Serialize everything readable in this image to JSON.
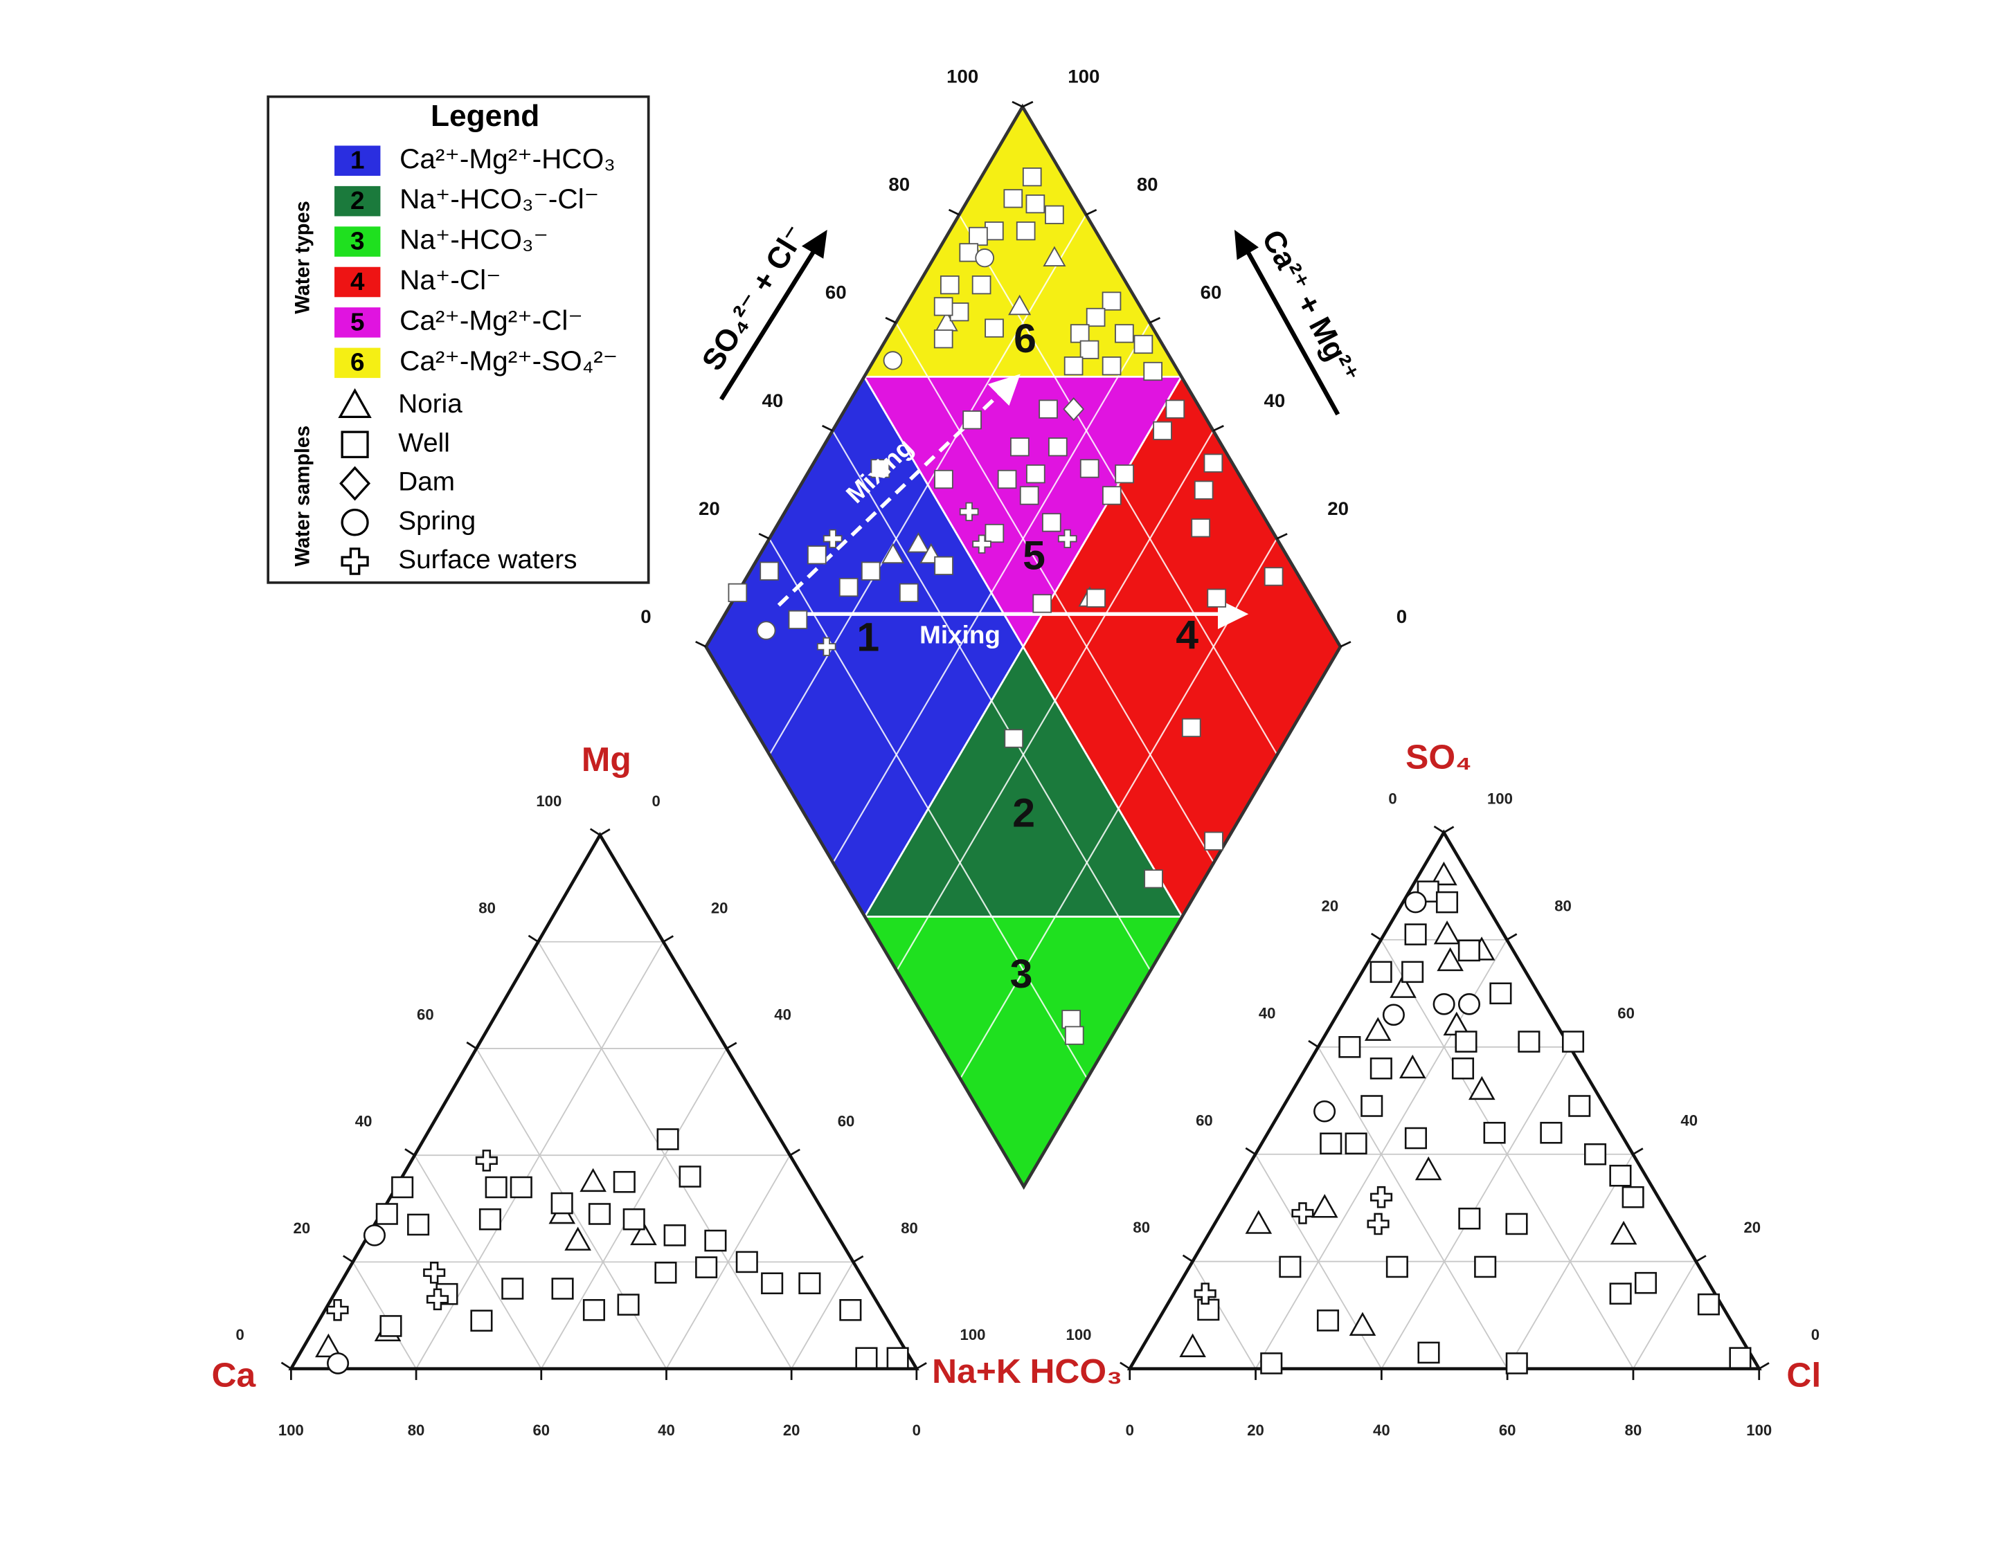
{
  "chart_data": {
    "type": "piper",
    "axis_label_color": "#c62020",
    "grid": true,
    "labels": {
      "mg": "Mg",
      "ca": "Ca",
      "nak": "Na+K",
      "hco3": "HCO₃",
      "so4": "SO₄",
      "cl": "Cl",
      "so4_cl": "SO₄²⁻ + Cl⁻",
      "ca_mg": "Ca²⁺ + Mg²⁺"
    },
    "annotations": [
      "Mixing",
      "Mixing"
    ],
    "cation_ticks": {
      "mg": [
        0,
        20,
        40,
        60,
        80,
        100
      ],
      "nak": [
        0,
        20,
        40,
        60,
        80,
        100
      ],
      "ca": [
        0,
        20,
        40,
        60,
        80,
        100
      ]
    },
    "anion_ticks": {
      "hco3": [
        0,
        20,
        40,
        60,
        80,
        100
      ],
      "so4": [
        0,
        20,
        40,
        60,
        80,
        100
      ],
      "cl": [
        0,
        20,
        40,
        60,
        80,
        100
      ]
    },
    "diamond_ticks": {
      "so4_cl": [
        0,
        20,
        40,
        60,
        80,
        100
      ],
      "ca_mg": [
        0,
        20,
        40,
        60,
        80,
        100
      ]
    },
    "legend": {
      "title": "Legend",
      "types_label": "Water types",
      "samples_label": "Water samples"
    },
    "water_types": [
      {
        "number": 1,
        "label": "Ca²⁺-Mg²⁺-HCO₃",
        "color": "#2a2ee0"
      },
      {
        "number": 2,
        "label": "Na⁺-HCO₃⁻-Cl⁻",
        "color": "#1b7a3c"
      },
      {
        "number": 3,
        "label": "Na⁺-HCO₃⁻",
        "color": "#1fe01f"
      },
      {
        "number": 4,
        "label": "Na⁺-Cl⁻",
        "color": "#ee1414"
      },
      {
        "number": 5,
        "label": "Ca²⁺-Mg²⁺-Cl⁻",
        "color": "#e014e0"
      },
      {
        "number": 6,
        "label": "Ca²⁺-Mg²⁺-SO₄²⁻",
        "color": "#f5ef14"
      }
    ],
    "series": [
      {
        "name": "Noria",
        "marker": "triangle",
        "cation": {
          "mg": [
            35,
            24,
            7,
            4,
            25,
            29
          ],
          "nak": [
            31,
            34,
            12,
            4,
            44,
            29
          ]
        },
        "anion": {
          "so4": [
            92,
            81,
            78,
            76,
            71,
            63,
            64,
            56,
            52,
            37,
            27,
            8,
            25,
            30,
            4
          ],
          "cl": [
            4,
            10,
            17,
            13,
            8,
            8,
            20,
            17,
            30,
            29,
            7,
            33,
            66,
            16,
            8
          ]
        },
        "diamond": {
          "so4_cl": [
            91,
            81,
            68,
            65,
            43,
            44,
            38
          ],
          "ca_mg": [
            81,
            82,
            92,
            44,
            76,
            73,
            79
          ]
        }
      },
      {
        "name": "Well",
        "marker": "square",
        "cation": {
          "mg": [
            43,
            36,
            35,
            34,
            34,
            34,
            29,
            27,
            28,
            31,
            29,
            28,
            25,
            24,
            20,
            16,
            16,
            11,
            15,
            11,
            12,
            18,
            15,
            14,
            8,
            9,
            2,
            2,
            19
          ],
          "nak": [
            39,
            46,
            36,
            20,
            16,
            1,
            1,
            7,
            18,
            28,
            35,
            41,
            49,
            56,
            63,
            69,
            75,
            84,
            36,
            43,
            48,
            51,
            28,
            18,
            12,
            26,
            96,
            91,
            57
          ]
        },
        "anion": {
          "so4": [
            89,
            87,
            81,
            74,
            74,
            78,
            70,
            61,
            60,
            56,
            56,
            61,
            61,
            49,
            44,
            49,
            43,
            42,
            42,
            44,
            40,
            36,
            32,
            28,
            27,
            19,
            19,
            19,
            9,
            3,
            1,
            1,
            14,
            12,
            2,
            11,
            16
          ],
          "cl": [
            3,
            7,
            5,
            3,
            8,
            15,
            24,
            23,
            5,
            12,
            25,
            33,
            40,
            47,
            45,
            14,
            24,
            11,
            15,
            36,
            54,
            60,
            64,
            40,
            48,
            16,
            47,
            33,
            27,
            46,
            61,
            22,
            71,
            86,
            96,
            7,
            74
          ]
        },
        "diamond": {
          "so4_cl": [
            95,
            90,
            93,
            84,
            89,
            95,
            81,
            78,
            77,
            72,
            71,
            66,
            75,
            69,
            96,
            92,
            88,
            95,
            88,
            84,
            90,
            97,
            96,
            63,
            76,
            68,
            74,
            68,
            63,
            53,
            65,
            77,
            82,
            66,
            56,
            44,
            26,
            17,
            33,
            10,
            17,
            28,
            37,
            45,
            92,
            96,
            97,
            93,
            89,
            85,
            96,
            78,
            66,
            57,
            69,
            62,
            49,
            40,
            23,
            22
          ],
          "ca_mg": [
            92,
            93,
            89,
            93,
            88,
            85,
            95,
            95,
            90,
            95,
            91,
            91,
            84,
            94,
            68,
            69,
            70,
            63,
            67,
            68,
            62,
            59,
            55,
            79,
            68,
            69,
            63,
            64,
            68,
            78,
            63,
            56,
            50,
            57,
            65,
            89,
            91,
            97,
            81,
            100,
            88,
            83,
            73,
            70,
            48,
            48,
            37,
            36,
            33,
            24,
            17,
            50,
            43,
            51,
            16,
            2,
            8,
            43,
            8,
            6
          ]
        }
      },
      {
        "name": "Dam",
        "marker": "diamond",
        "cation": {
          "mg": [],
          "nak": []
        },
        "anion": {
          "so4": [],
          "cl": []
        },
        "diamond": {
          "so4_cl": [
            80
          ],
          "ca_mg": [
            64
          ]
        }
      },
      {
        "name": "Spring",
        "marker": "circle",
        "cation": {
          "mg": [
            25,
            1
          ],
          "nak": [
            1,
            7
          ]
        },
        "anion": {
          "so4": [
            87,
            66,
            48,
            68,
            68
          ],
          "cl": [
            2,
            9,
            7,
            20,
            16
          ]
        },
        "diamond": {
          "so4_cl": [
            56,
            80,
            11
          ],
          "ca_mg": [
            97,
            92,
            92
          ]
        }
      },
      {
        "name": "Surface waters",
        "marker": "plus",
        "cation": {
          "mg": [
            39,
            11,
            13,
            18
          ],
          "nak": [
            12,
            2,
            17,
            14
          ]
        },
        "anion": {
          "so4": [
            32,
            29,
            27,
            14
          ],
          "cl": [
            24,
            13,
            26,
            5
          ]
        },
        "diamond": {
          "so4_cl": [
            53,
            67,
            54,
            19,
            30
          ],
          "ca_mg": [
            66,
            53,
            71,
            81,
            90
          ]
        }
      }
    ]
  }
}
